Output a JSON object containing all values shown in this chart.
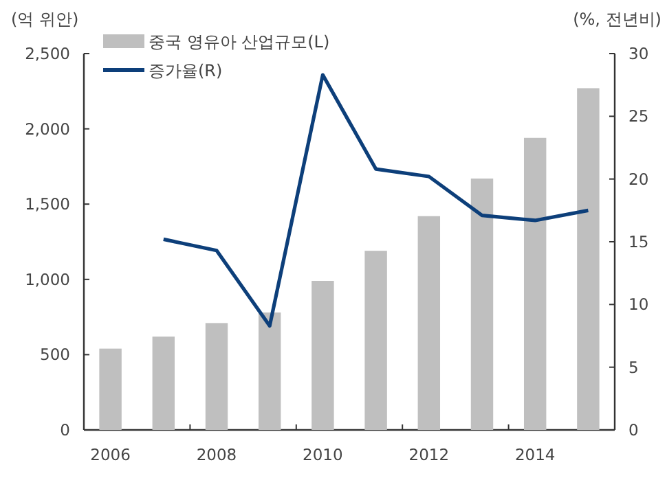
{
  "chart_data": {
    "type": "bar",
    "ylabel": "(억 위안)",
    "y2label": "(%, 전년비)",
    "categories": [
      "2006",
      null,
      "2008",
      null,
      "2010",
      null,
      "2012",
      null,
      "2014",
      null
    ],
    "series": [
      {
        "name": "중국 영유아 산업규모(L)",
        "color": "#bfbfbf",
        "values": [
          540,
          620,
          710,
          780,
          990,
          1190,
          1420,
          1670,
          1940,
          2270
        ]
      },
      {
        "name": "증가율(R)",
        "type": "line",
        "axis": "y2",
        "color": "#0d3f7a",
        "line_style": "solid",
        "values": [
          null,
          15.2,
          14.3,
          8.3,
          28.3,
          20.8,
          20.2,
          17.1,
          16.7,
          17.5
        ]
      }
    ],
    "ylim": [
      0,
      2500
    ],
    "yticks": [
      0,
      500,
      {
        "value": 1000,
        "label": "1,000"
      },
      {
        "value": 1500,
        "label": "1,500"
      },
      {
        "value": 2000,
        "label": "2,000"
      },
      {
        "value": 2500,
        "label": "2,500"
      }
    ],
    "y2lim": [
      0,
      30
    ],
    "y2ticks": [
      0,
      5,
      10,
      15,
      20,
      25,
      30
    ],
    "legend": "top left"
  }
}
